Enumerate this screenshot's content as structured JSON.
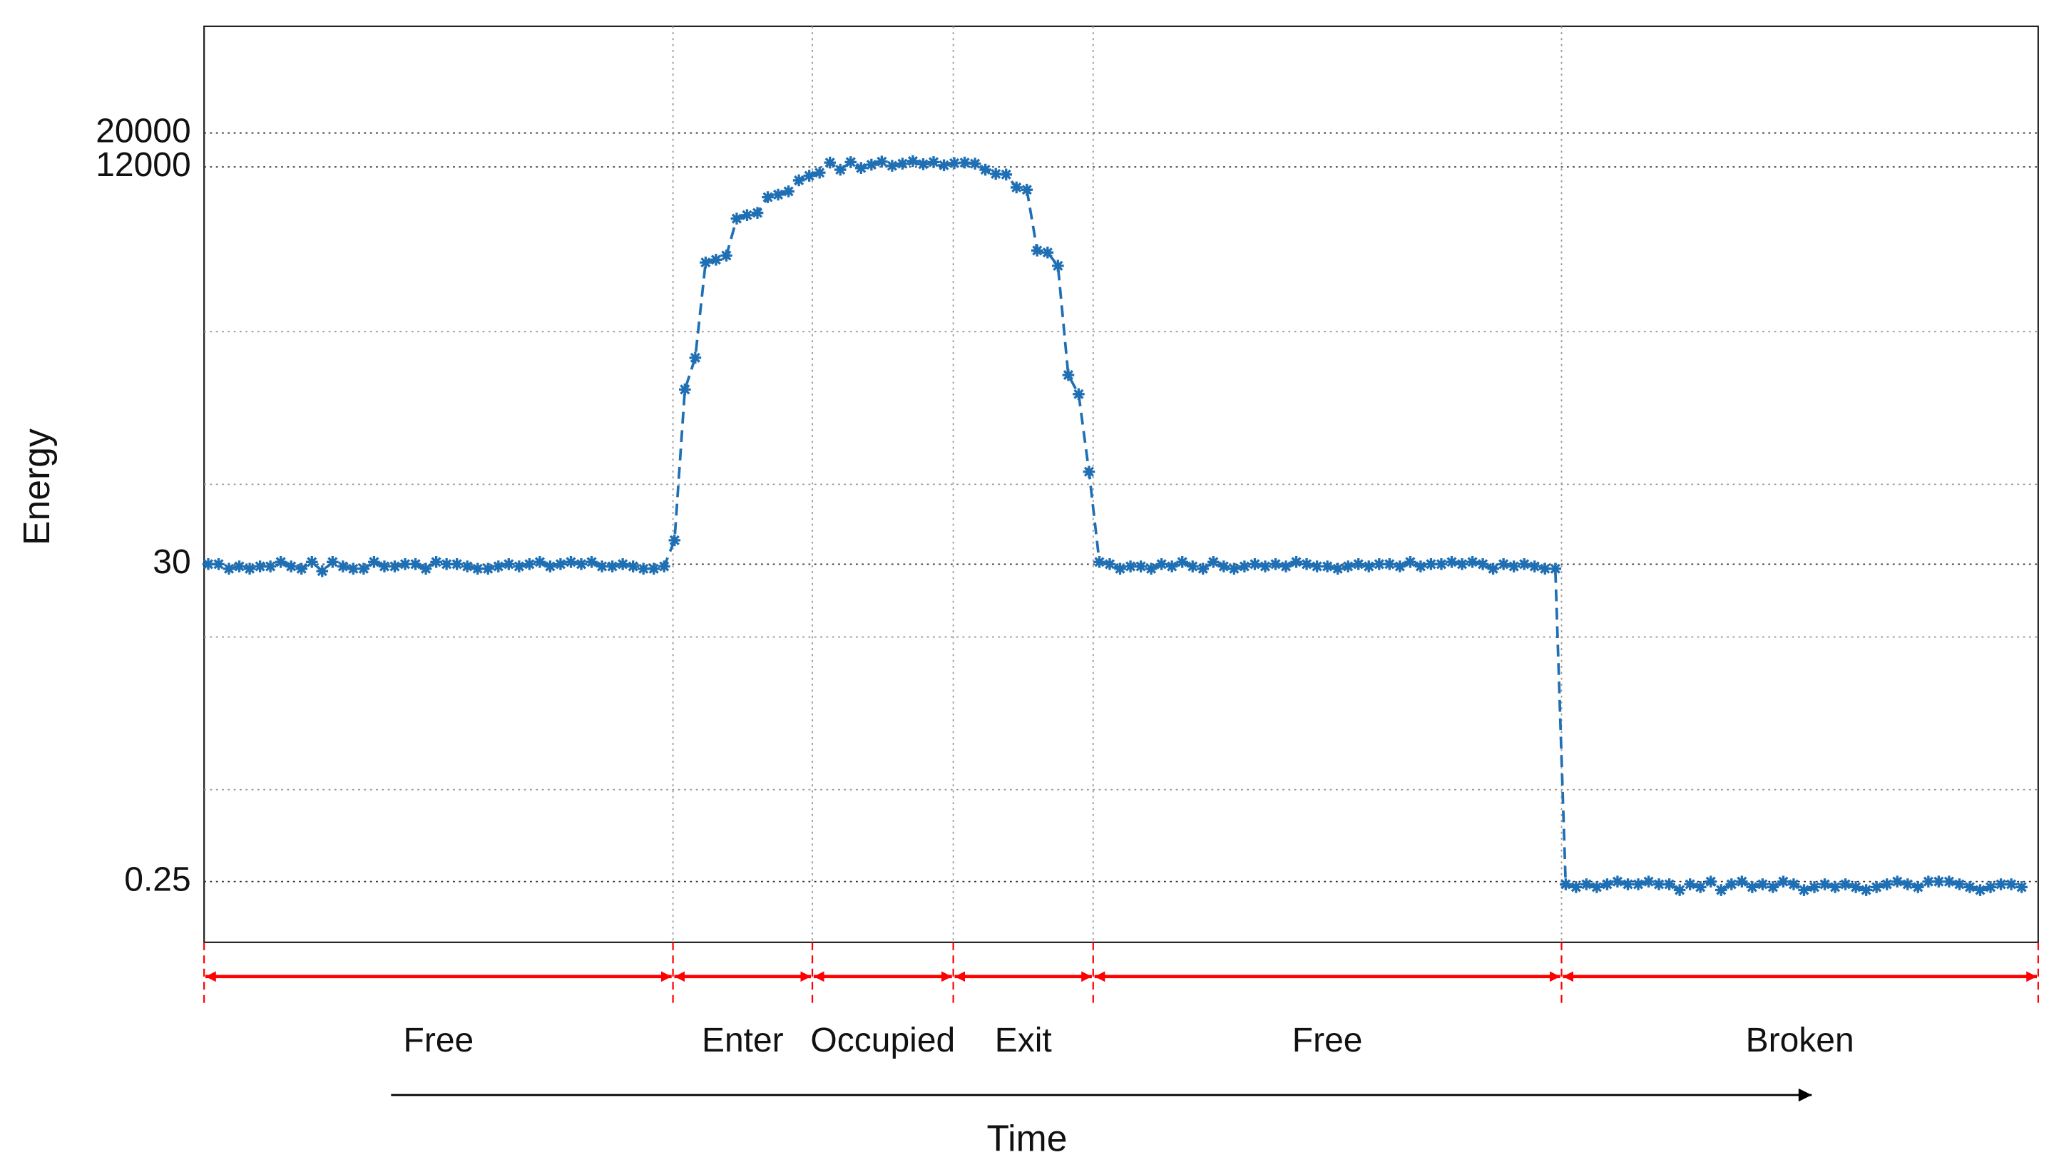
{
  "chart_data": {
    "type": "line",
    "xlabel": "Time",
    "ylabel": "Energy",
    "x": [
      0,
      1,
      2,
      3,
      4,
      5,
      6,
      7,
      8,
      9,
      10,
      11,
      12,
      13,
      14,
      15,
      16,
      17,
      18,
      19,
      20,
      21,
      22,
      23,
      24,
      25,
      26,
      27,
      28,
      29,
      30,
      31,
      32,
      33,
      34,
      35,
      36,
      37,
      38,
      39,
      40,
      41,
      42,
      43,
      44,
      45,
      46,
      47,
      48,
      49,
      50,
      51,
      52,
      53,
      54,
      55,
      56,
      57,
      58,
      59,
      60,
      61,
      62,
      63,
      64,
      65,
      66,
      67,
      68,
      69,
      70,
      71,
      72,
      73,
      74,
      75,
      76,
      77,
      78,
      79,
      80,
      81,
      82,
      83,
      84,
      85,
      86,
      87,
      88,
      89,
      90,
      91,
      92,
      93,
      94,
      95,
      96,
      97,
      98,
      99,
      100,
      101,
      102,
      103,
      104,
      105,
      106,
      107,
      108,
      109,
      110,
      111,
      112,
      113,
      114,
      115,
      116,
      117,
      118,
      119,
      120,
      121,
      122,
      123,
      124,
      125,
      126,
      127,
      128,
      129,
      130,
      131,
      132,
      133,
      134,
      135,
      136,
      137,
      138,
      139,
      140,
      141,
      142,
      143,
      144,
      145,
      146,
      147,
      148,
      149,
      150,
      151,
      152,
      153,
      154,
      155,
      156,
      157,
      158,
      159,
      160,
      161,
      162,
      163,
      164,
      165,
      166,
      167,
      168,
      169,
      170,
      171,
      172,
      173,
      174,
      175
    ],
    "series": [
      {
        "color": "#1f6fb4",
        "values": [
          30,
          30,
          28,
          29,
          28,
          29,
          29,
          31,
          29,
          28,
          31,
          27,
          31,
          29,
          28,
          28,
          31,
          29,
          29,
          30,
          30,
          28,
          31,
          30,
          30,
          29,
          28,
          28,
          29,
          30,
          29,
          30,
          31,
          29,
          30,
          31,
          30,
          31,
          29,
          29,
          30,
          29,
          28,
          28,
          29,
          43,
          418,
          675,
          2840,
          2960,
          3150,
          5500,
          5800,
          6000,
          7600,
          7900,
          8300,
          9800,
          10500,
          11000,
          12800,
          11500,
          12900,
          11800,
          12400,
          13000,
          12200,
          12600,
          13100,
          12500,
          12900,
          12300,
          12700,
          12800,
          12600,
          11500,
          10800,
          10700,
          8800,
          8500,
          3400,
          3300,
          2700,
          520,
          390,
          121,
          31,
          30,
          28,
          29,
          29,
          28,
          30,
          29,
          31,
          29,
          28,
          31,
          29,
          28,
          29,
          30,
          29,
          30,
          29,
          31,
          30,
          29,
          29,
          28,
          29,
          30,
          29,
          30,
          30,
          29,
          31,
          29,
          30,
          30,
          31,
          30,
          31,
          30,
          28,
          30,
          29,
          30,
          29,
          28,
          28,
          0.24,
          0.23,
          0.24,
          0.23,
          0.24,
          0.25,
          0.24,
          0.24,
          0.25,
          0.24,
          0.24,
          0.22,
          0.24,
          0.23,
          0.25,
          0.22,
          0.24,
          0.25,
          0.23,
          0.24,
          0.23,
          0.25,
          0.24,
          0.22,
          0.23,
          0.24,
          0.23,
          0.24,
          0.23,
          0.22,
          0.23,
          0.24,
          0.25,
          0.24,
          0.23,
          0.25,
          0.25,
          0.25,
          0.24,
          0.23,
          0.22,
          0.23,
          0.24,
          0.24,
          0.23
        ]
      }
    ],
    "xlim": [
      -0.4,
      176.6
    ],
    "ylim": [
      0.1,
      100000
    ],
    "log_y": true,
    "yticks": [
      0.25,
      30,
      12000,
      20000
    ],
    "ygrid": [
      1,
      10,
      100,
      1000
    ],
    "grid": true,
    "phases": [
      {
        "label": "Free",
        "start": -0.4,
        "end": 44.85
      },
      {
        "label": "Enter",
        "start": 44.85,
        "end": 58.3
      },
      {
        "label": "Occupied",
        "start": 58.3,
        "end": 71.9
      },
      {
        "label": "Exit",
        "start": 71.9,
        "end": 85.4
      },
      {
        "label": "Free",
        "start": 85.4,
        "end": 130.6
      },
      {
        "label": "Broken",
        "start": 130.6,
        "end": 176.6
      }
    ],
    "phase_color": "#ff0000"
  }
}
